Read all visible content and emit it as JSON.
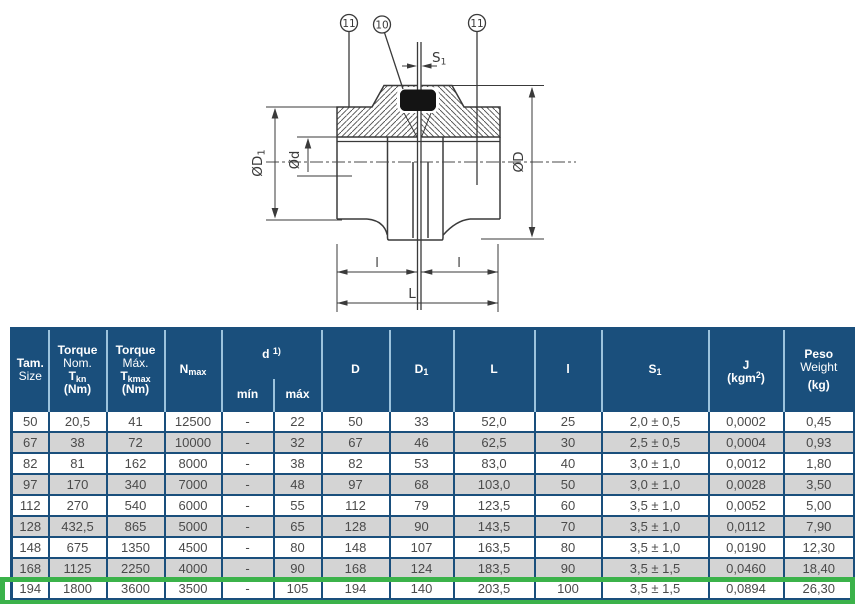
{
  "diagram": {
    "balloon_left": "11",
    "balloon_mid": "10",
    "balloon_right": "11",
    "s1_main": "S",
    "s1_sub": "1",
    "dim_d1_main": "ØD",
    "dim_d1_sub": "1",
    "dim_d": "Ød",
    "dim_D": "ØD",
    "dim_l_left": "l",
    "dim_l_right": "l",
    "dim_L": "L"
  },
  "table": {
    "header": {
      "tam_line1": "Tam.",
      "tam_line2": "Size",
      "tq_nom_line1": "Torque",
      "tq_nom_line2": "Nom.",
      "tq_nom_sym": "T",
      "tq_nom_sub": "kn",
      "tq_nom_unit": "(Nm)",
      "tq_max_line1": "Torque",
      "tq_max_line2": "Máx.",
      "tq_max_sym": "T",
      "tq_max_sub": "kmax",
      "tq_max_unit": "(Nm)",
      "nmax_sym": "N",
      "nmax_sub": "max",
      "d_sym": "d",
      "d_sup": "1)",
      "d_min": "mín",
      "d_max": "máx",
      "D": "D",
      "D1_sym": "D",
      "D1_sub": "1",
      "L": "L",
      "l": "l",
      "S1_sym": "S",
      "S1_sub": "1",
      "J_sym": "J",
      "J_unit_pre": "(kgm",
      "J_unit_sup": "2",
      "J_unit_post": ")",
      "peso_line1": "Peso",
      "peso_line2": "Weight",
      "peso_unit": "(kg)"
    },
    "rows": [
      [
        "50",
        "20,5",
        "41",
        "12500",
        "-",
        "22",
        "50",
        "33",
        "52,0",
        "25",
        "2,0 ± 0,5",
        "0,0002",
        "0,45"
      ],
      [
        "67",
        "38",
        "72",
        "10000",
        "-",
        "32",
        "67",
        "46",
        "62,5",
        "30",
        "2,5 ± 0,5",
        "0,0004",
        "0,93"
      ],
      [
        "82",
        "81",
        "162",
        "8000",
        "-",
        "38",
        "82",
        "53",
        "83,0",
        "40",
        "3,0 ± 1,0",
        "0,0012",
        "1,80"
      ],
      [
        "97",
        "170",
        "340",
        "7000",
        "-",
        "48",
        "97",
        "68",
        "103,0",
        "50",
        "3,0 ± 1,0",
        "0,0028",
        "3,50"
      ],
      [
        "112",
        "270",
        "540",
        "6000",
        "-",
        "55",
        "112",
        "79",
        "123,5",
        "60",
        "3,5 ± 1,0",
        "0,0052",
        "5,00"
      ],
      [
        "128",
        "432,5",
        "865",
        "5000",
        "-",
        "65",
        "128",
        "90",
        "143,5",
        "70",
        "3,5 ± 1,0",
        "0,0112",
        "7,90"
      ],
      [
        "148",
        "675",
        "1350",
        "4500",
        "-",
        "80",
        "148",
        "107",
        "163,5",
        "80",
        "3,5 ± 1,0",
        "0,0190",
        "12,30"
      ],
      [
        "168",
        "1125",
        "2250",
        "4000",
        "-",
        "90",
        "168",
        "124",
        "183,5",
        "90",
        "3,5 ± 1,5",
        "0,0460",
        "18,40"
      ],
      [
        "194",
        "1800",
        "3600",
        "3500",
        "-",
        "105",
        "194",
        "140",
        "203,5",
        "100",
        "3,5 ± 1,5",
        "0,0894",
        "26,30"
      ]
    ]
  },
  "colors": {
    "header_navy": "#1a4f7c",
    "header_separator": "#9cc3dd",
    "row_alt_gray": "#d4d4d4",
    "highlight_green": "#3bb24a",
    "drawing_line": "#3a3a3a"
  }
}
